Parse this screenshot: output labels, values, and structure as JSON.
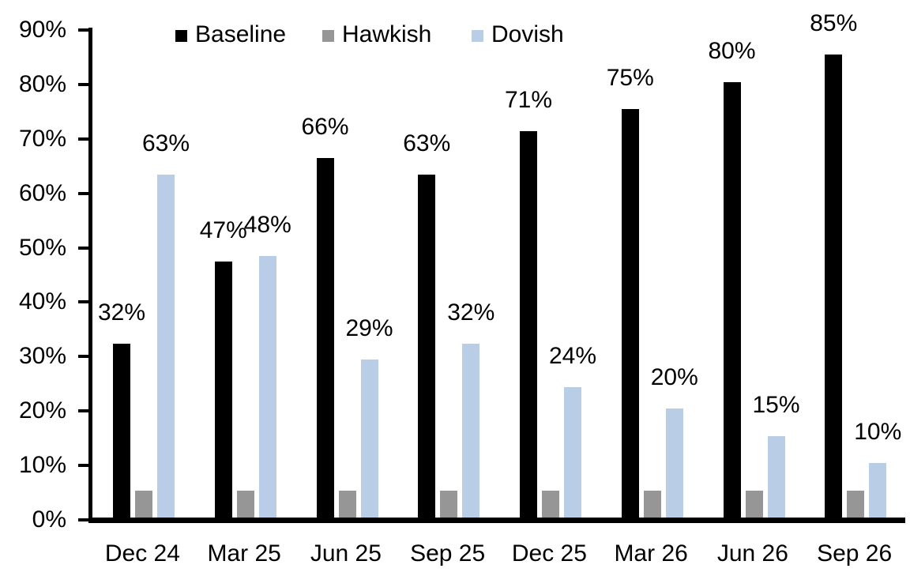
{
  "chart_data": {
    "type": "bar",
    "title": "",
    "categories": [
      "Dec 24",
      "Mar 25",
      "Jun 25",
      "Sep 25",
      "Dec 25",
      "Mar 26",
      "Jun 26",
      "Sep 26"
    ],
    "series": [
      {
        "name": "Baseline",
        "color": "#000000",
        "values": [
          32,
          47,
          66,
          63,
          71,
          75,
          80,
          85
        ],
        "labels": [
          "32%",
          "47%",
          "66%",
          "63%",
          "71%",
          "75%",
          "80%",
          "85%"
        ]
      },
      {
        "name": "Hawkish",
        "color": "#969696",
        "values": [
          5,
          5,
          5,
          5,
          5,
          5,
          5,
          5
        ],
        "labels": [
          "",
          "",
          "",
          "",
          "",
          "",
          "",
          ""
        ]
      },
      {
        "name": "Dovish",
        "color": "#B9CDE6",
        "values": [
          63,
          48,
          29,
          32,
          24,
          20,
          15,
          10
        ],
        "labels": [
          "63%",
          "48%",
          "29%",
          "32%",
          "24%",
          "20%",
          "15%",
          "10%"
        ]
      }
    ],
    "y_axis": {
      "min": 0,
      "max": 90,
      "tick_step": 10,
      "tick_labels": [
        "0%",
        "10%",
        "20%",
        "30%",
        "40%",
        "50%",
        "60%",
        "70%",
        "80%",
        "90%"
      ]
    },
    "x_axis": {
      "label": ""
    },
    "legend": {
      "position": "top",
      "items": [
        "Baseline",
        "Hawkish",
        "Dovish"
      ]
    },
    "grid": false,
    "background": "#ffffff"
  }
}
